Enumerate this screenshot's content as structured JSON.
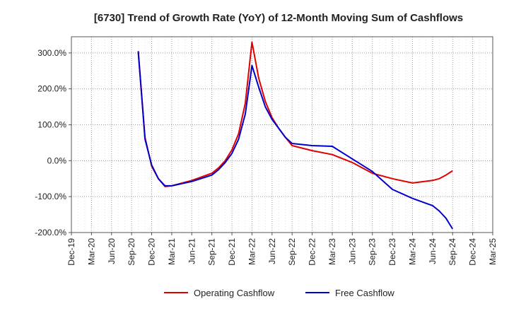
{
  "chart_data": {
    "type": "line",
    "title": "[6730]  Trend of Growth Rate (YoY) of 12-Month Moving Sum of Cashflows",
    "xlabel": "",
    "ylabel": "",
    "x_ticks": [
      "Dec-19",
      "Mar-20",
      "Jun-20",
      "Sep-20",
      "Dec-20",
      "Mar-21",
      "Jun-21",
      "Sep-21",
      "Dec-21",
      "Mar-22",
      "Jun-22",
      "Sep-22",
      "Dec-22",
      "Mar-23",
      "Jun-23",
      "Sep-23",
      "Dec-23",
      "Mar-24",
      "Jun-24",
      "Sep-24",
      "Dec-24",
      "Mar-25"
    ],
    "x_range": [
      "2019-12",
      "2025-03"
    ],
    "y_ticks": [
      300,
      200,
      100,
      0,
      -100,
      -200
    ],
    "y_tick_labels": [
      "300.0%",
      "200.0%",
      "100.0%",
      "0.0%",
      "-100.0%",
      "-200.0%"
    ],
    "ylim": [
      -200,
      345
    ],
    "grid": true,
    "legend_position": "bottom",
    "series": [
      {
        "name": "Operating Cashflow",
        "color": "#e00000",
        "points": [
          [
            "2020-10",
            300
          ],
          [
            "2020-11",
            65
          ],
          [
            "2020-12",
            -15
          ],
          [
            "2021-01",
            -50
          ],
          [
            "2021-02",
            -72
          ],
          [
            "2021-03",
            -70
          ],
          [
            "2021-06",
            -55
          ],
          [
            "2021-09",
            -35
          ],
          [
            "2021-10",
            -20
          ],
          [
            "2021-11",
            0
          ],
          [
            "2021-12",
            30
          ],
          [
            "2022-01",
            75
          ],
          [
            "2022-02",
            160
          ],
          [
            "2022-03",
            330
          ],
          [
            "2022-04",
            230
          ],
          [
            "2022-05",
            165
          ],
          [
            "2022-06",
            120
          ],
          [
            "2022-07",
            90
          ],
          [
            "2022-08",
            65
          ],
          [
            "2022-09",
            42
          ],
          [
            "2022-12",
            28
          ],
          [
            "2023-03",
            17
          ],
          [
            "2023-06",
            -5
          ],
          [
            "2023-09",
            -35
          ],
          [
            "2023-12",
            -50
          ],
          [
            "2024-03",
            -62
          ],
          [
            "2024-06",
            -55
          ],
          [
            "2024-07",
            -50
          ],
          [
            "2024-08",
            -40
          ],
          [
            "2024-09",
            -28
          ]
        ]
      },
      {
        "name": "Free Cashflow",
        "color": "#0000cc",
        "points": [
          [
            "2020-10",
            305
          ],
          [
            "2020-11",
            60
          ],
          [
            "2020-12",
            -12
          ],
          [
            "2021-01",
            -50
          ],
          [
            "2021-02",
            -70
          ],
          [
            "2021-03",
            -70
          ],
          [
            "2021-06",
            -58
          ],
          [
            "2021-09",
            -40
          ],
          [
            "2021-10",
            -25
          ],
          [
            "2021-11",
            -5
          ],
          [
            "2021-12",
            20
          ],
          [
            "2022-01",
            60
          ],
          [
            "2022-02",
            130
          ],
          [
            "2022-03",
            265
          ],
          [
            "2022-04",
            205
          ],
          [
            "2022-05",
            150
          ],
          [
            "2022-06",
            115
          ],
          [
            "2022-07",
            90
          ],
          [
            "2022-08",
            65
          ],
          [
            "2022-09",
            48
          ],
          [
            "2022-12",
            42
          ],
          [
            "2023-03",
            40
          ],
          [
            "2023-06",
            5
          ],
          [
            "2023-09",
            -30
          ],
          [
            "2023-12",
            -80
          ],
          [
            "2024-03",
            -105
          ],
          [
            "2024-06",
            -125
          ],
          [
            "2024-07",
            -140
          ],
          [
            "2024-08",
            -160
          ],
          [
            "2024-09",
            -190
          ]
        ]
      }
    ]
  }
}
